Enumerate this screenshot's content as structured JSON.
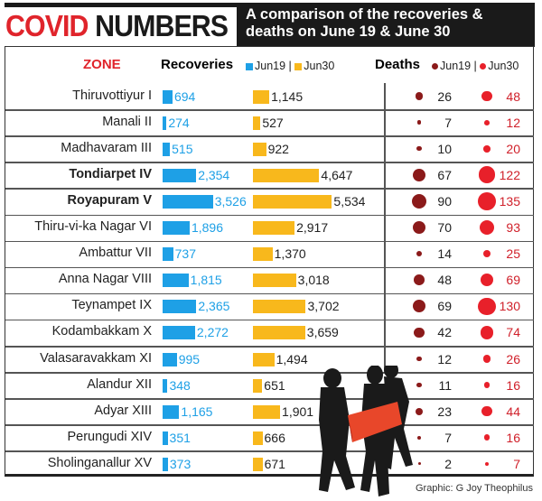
{
  "header": {
    "title_part1": "COVID",
    "title_part2": "NUMBERS",
    "subtitle": "A comparison of the recoveries & deaths on June 19 & June 30"
  },
  "colors": {
    "jun19_bar": "#1ea0e6",
    "jun30_bar": "#f8b81c",
    "jun19_dot": "#8b1a1a",
    "jun30_dot": "#e8202a",
    "zone_header": "#e0242b"
  },
  "chart_data": {
    "type": "bar",
    "zone_header": "ZONE",
    "recoveries_label": "Recoveries",
    "deaths_label": "Deaths",
    "legend": {
      "jun19": "Jun19",
      "jun30": "Jun30",
      "separator": "|"
    },
    "categories": [
      "Thiruvottiyur I",
      "Manali II",
      "Madhavaram III",
      "Tondiarpet IV",
      "Royapuram V",
      "Thiru-vi-ka Nagar VI",
      "Ambattur VII",
      "Anna Nagar VIII",
      "Teynampet IX",
      "Kodambakkam X",
      "Valasaravakkam XI",
      "Alandur XII",
      "Adyar XIII",
      "Perungudi XIV",
      "Sholinganallur XV"
    ],
    "bold_categories": [
      "Tondiarpet IV",
      "Royapuram V"
    ],
    "recoveries": [
      {
        "name": "Jun19",
        "values": [
          694,
          274,
          515,
          2354,
          3526,
          1896,
          737,
          1815,
          2365,
          2272,
          995,
          348,
          1165,
          351,
          373
        ],
        "labels": [
          "694",
          "274",
          "515",
          "2,354",
          "3,526",
          "1,896",
          "737",
          "1,815",
          "2,365",
          "2,272",
          "995",
          "348",
          "1,165",
          "351",
          "373"
        ]
      },
      {
        "name": "Jun30",
        "values": [
          1145,
          527,
          922,
          4647,
          5534,
          2917,
          1370,
          3018,
          3702,
          3659,
          1494,
          651,
          1901,
          666,
          671
        ],
        "labels": [
          "1,145",
          "527",
          "922",
          "4,647",
          "5,534",
          "2,917",
          "1,370",
          "3,018",
          "3,702",
          "3,659",
          "1,494",
          "651",
          "1,901",
          "666",
          "671"
        ]
      }
    ],
    "deaths": [
      {
        "name": "Jun19",
        "values": [
          26,
          7,
          10,
          67,
          90,
          70,
          14,
          48,
          69,
          42,
          12,
          11,
          23,
          7,
          2
        ]
      },
      {
        "name": "Jun30",
        "values": [
          48,
          12,
          20,
          122,
          135,
          93,
          25,
          69,
          130,
          74,
          26,
          16,
          44,
          16,
          7
        ]
      }
    ]
  },
  "credit": "Graphic: G Joy Theophilus"
}
